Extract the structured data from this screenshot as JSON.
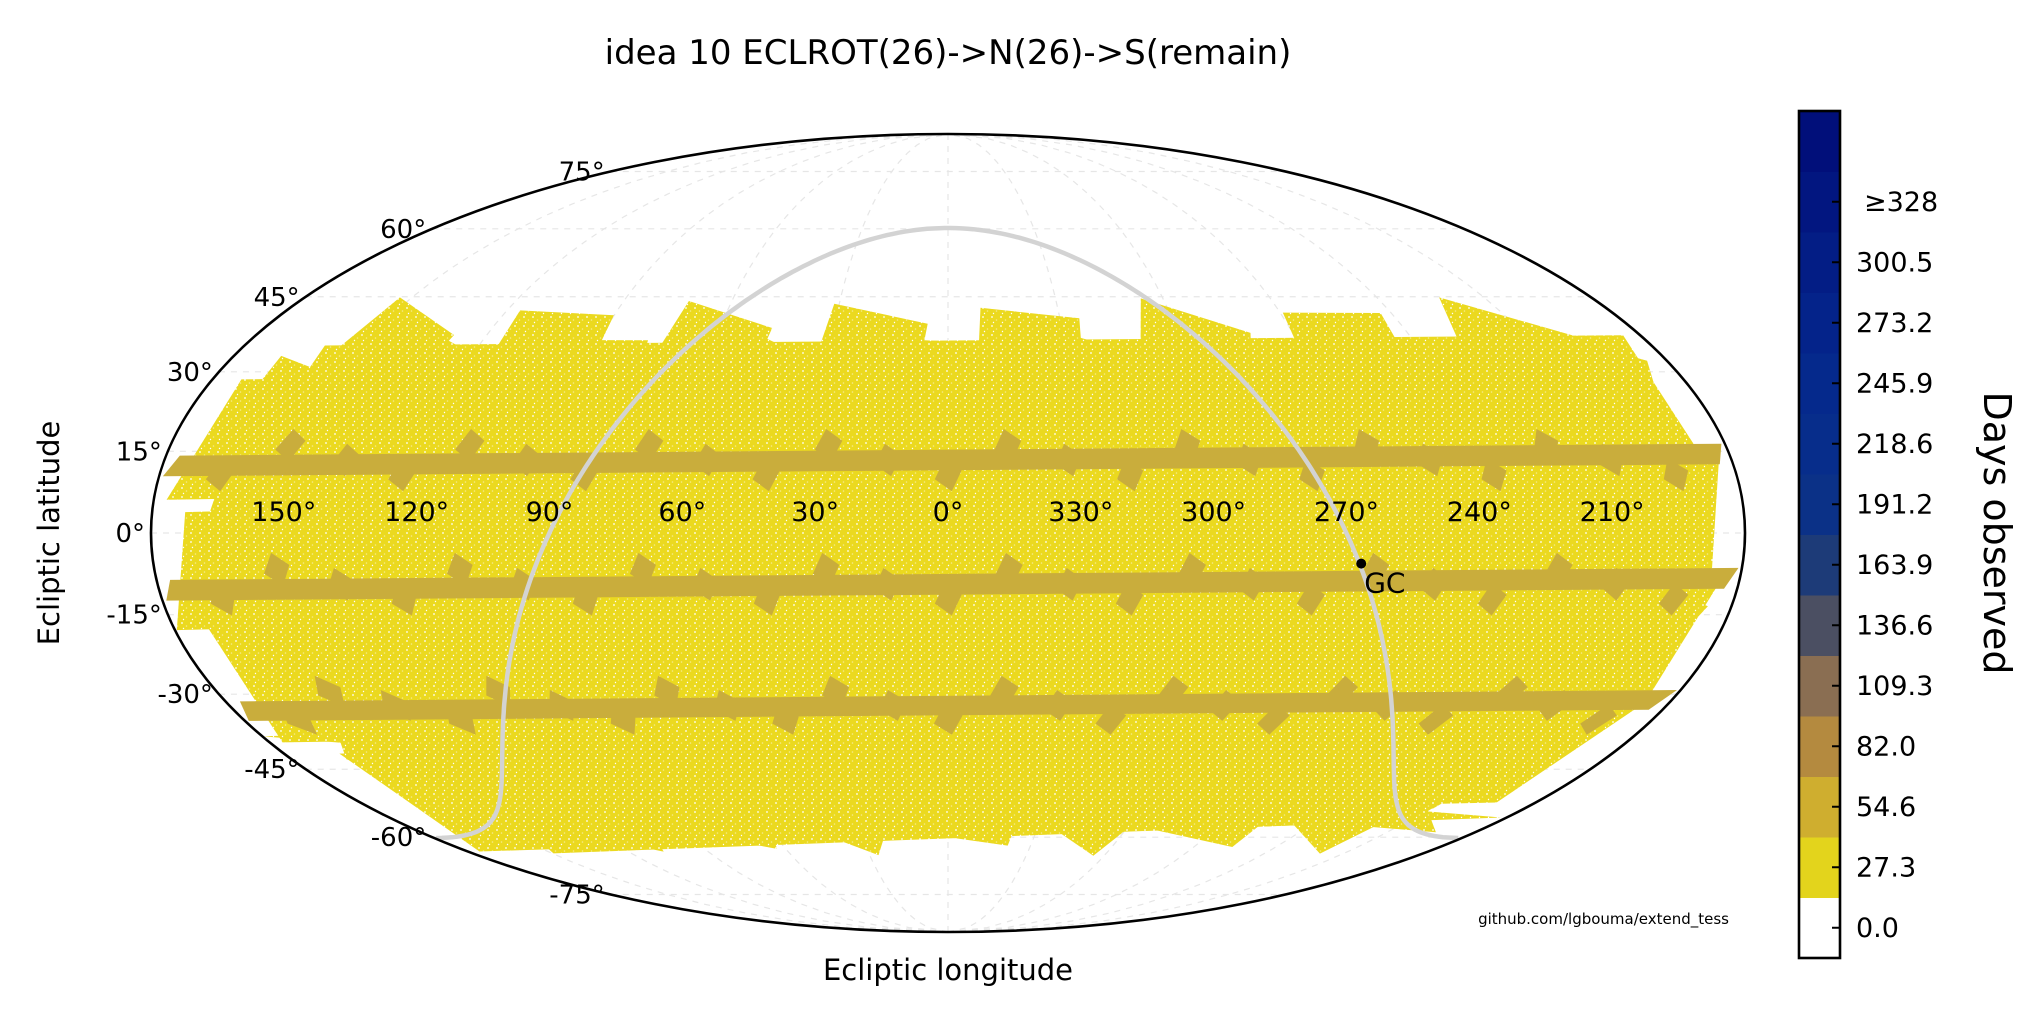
{
  "chart_data": {
    "type": "scatter",
    "projection": "mollweide",
    "title": "idea 10 ECLROT(26)->N(26)->S(remain)",
    "xlabel": "Ecliptic longitude",
    "ylabel": "Ecliptic latitude",
    "lon_tick_labels": [
      "150°",
      "120°",
      "90°",
      "60°",
      "30°",
      "0°",
      "330°",
      "300°",
      "270°",
      "240°",
      "210°"
    ],
    "lat_tick_labels": [
      "75°",
      "60°",
      "45°",
      "30°",
      "15°",
      "0°",
      "-15°",
      "-30°",
      "-45°",
      "-60°",
      "-75°"
    ],
    "grid": true,
    "sky_coverage_lat_range": [
      -55,
      48
    ],
    "series": [
      {
        "range": [
          0.0,
          27.3
        ],
        "color": "#e3d41c"
      },
      {
        "range": [
          27.3,
          54.6
        ],
        "color": "#c9ad3c"
      }
    ],
    "galactic_plane": {
      "color": "#d3d3d3"
    },
    "annotations": [
      {
        "label": "GC",
        "lon": 266.4,
        "lat": -5.6
      }
    ],
    "colorbar": {
      "label": "Days observed",
      "tick_labels": [
        "0.0",
        "27.3",
        "54.6",
        "82.0",
        "109.3",
        "136.6",
        "163.9",
        "191.2",
        "218.6",
        "245.9",
        "273.2",
        "300.5",
        "≥328"
      ],
      "colors": [
        "#ffffff",
        "#e3d41c",
        "#cfae2f",
        "#b48a3f",
        "#8a6e52",
        "#4b4f62",
        "#1d3b78",
        "#0b3187",
        "#072d8b",
        "#05298c",
        "#04238a",
        "#031d85",
        "#021680",
        "#010f7a"
      ]
    },
    "credit": "github.com/lgbouma/extend_tess"
  }
}
